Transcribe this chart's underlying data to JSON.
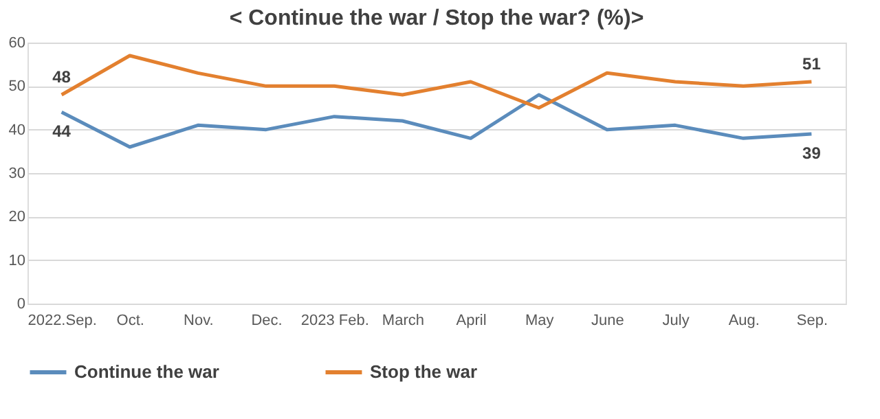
{
  "chart_data": {
    "type": "line",
    "title": "< Continue the war / Stop the war? (%)>",
    "categories": [
      "2022.Sep.",
      "Oct.",
      "Nov.",
      "Dec.",
      "2023 Feb.",
      "March",
      "April",
      "May",
      "June",
      "July",
      "Aug.",
      "Sep."
    ],
    "series": [
      {
        "name": "Continue the war",
        "color": "#5b8cbc",
        "values": [
          44,
          36,
          41,
          40,
          43,
          42,
          38,
          48,
          40,
          41,
          38,
          39
        ],
        "value_labels": [
          "44",
          null,
          null,
          null,
          null,
          null,
          null,
          null,
          null,
          null,
          null,
          "39"
        ]
      },
      {
        "name": "Stop the war",
        "color": "#e3802f",
        "values": [
          48,
          57,
          53,
          50,
          50,
          48,
          51,
          45,
          53,
          51,
          50,
          51
        ],
        "value_labels": [
          "48",
          null,
          null,
          null,
          null,
          null,
          null,
          null,
          null,
          null,
          null,
          "51"
        ]
      }
    ],
    "ylim": [
      0,
      60
    ],
    "yticks": [
      0,
      10,
      20,
      30,
      40,
      50,
      60
    ],
    "grid": "y",
    "legend": "bottom",
    "marker": "none",
    "line_style": "solid"
  }
}
